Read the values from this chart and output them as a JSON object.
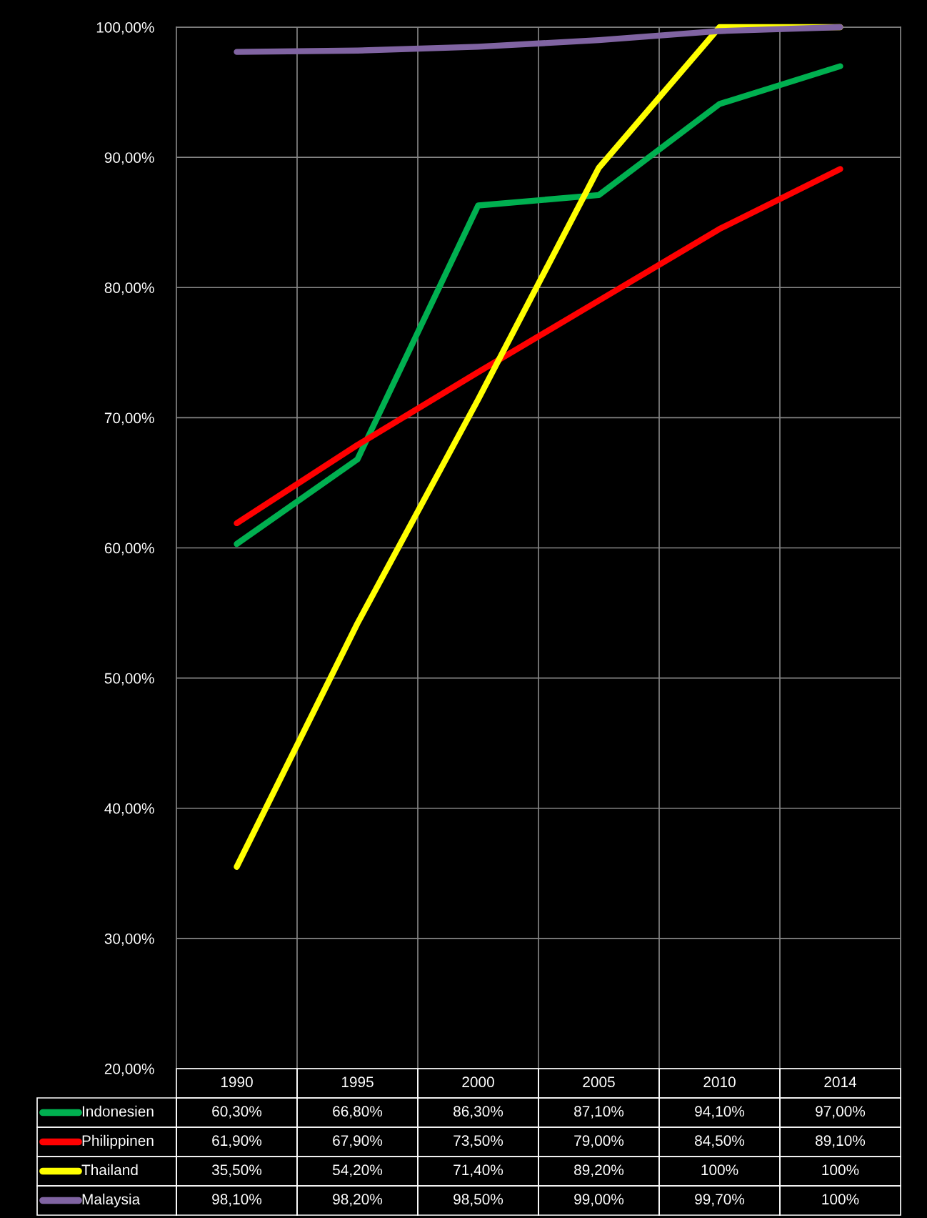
{
  "chart_data": {
    "type": "line",
    "categories": [
      "1990",
      "1995",
      "2000",
      "2005",
      "2010",
      "2014"
    ],
    "series": [
      {
        "name": "Indonesien",
        "color": "#00b050",
        "values": [
          60.3,
          66.8,
          86.3,
          87.1,
          94.1,
          97.0
        ],
        "value_labels": [
          "60,30%",
          "66,80%",
          "86,30%",
          "87,10%",
          "94,10%",
          "97,00%"
        ]
      },
      {
        "name": "Philippinen",
        "color": "#ff0000",
        "values": [
          61.9,
          67.9,
          73.5,
          79.0,
          84.5,
          89.1
        ],
        "value_labels": [
          "61,90%",
          "67,90%",
          "73,50%",
          "79,00%",
          "84,50%",
          "89,10%"
        ]
      },
      {
        "name": "Thailand",
        "color": "#ffff00",
        "values": [
          35.5,
          54.2,
          71.4,
          89.2,
          100,
          100
        ],
        "value_labels": [
          "35,50%",
          "54,20%",
          "71,40%",
          "89,20%",
          "100%",
          "100%"
        ]
      },
      {
        "name": "Malaysia",
        "color": "#8064a2",
        "values": [
          98.1,
          98.2,
          98.5,
          99.0,
          99.7,
          100
        ],
        "value_labels": [
          "98,10%",
          "98,20%",
          "98,50%",
          "99,00%",
          "99,70%",
          "100%"
        ]
      }
    ],
    "ylim": [
      20,
      100
    ],
    "yticks": [
      {
        "value": 20,
        "label": "20,00%"
      },
      {
        "value": 30,
        "label": "30,00%"
      },
      {
        "value": 40,
        "label": "40,00%"
      },
      {
        "value": 50,
        "label": "50,00%"
      },
      {
        "value": 60,
        "label": "60,00%"
      },
      {
        "value": 70,
        "label": "70,00%"
      },
      {
        "value": 80,
        "label": "80,00%"
      },
      {
        "value": 90,
        "label": "90,00%"
      },
      {
        "value": 100,
        "label": "100,00%"
      }
    ],
    "grid": true,
    "legend": "bottom",
    "marker": "none",
    "line_style": "solid"
  }
}
